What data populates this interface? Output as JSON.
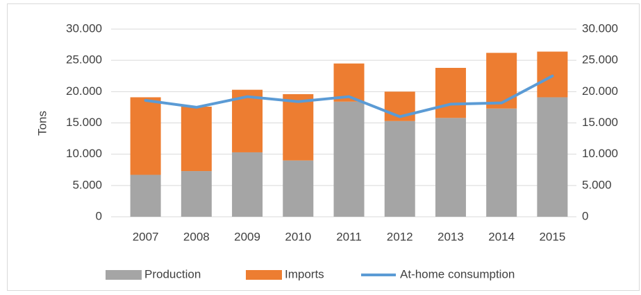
{
  "chart_data": {
    "type": "bar_line",
    "y_label": "Tons",
    "categories": [
      "2007",
      "2008",
      "2009",
      "2010",
      "2011",
      "2012",
      "2013",
      "2014",
      "2015"
    ],
    "series": [
      {
        "name": "Production",
        "color": "#a5a5a5",
        "type": "bar",
        "values": [
          6700,
          7300,
          10300,
          9000,
          18400,
          15300,
          15800,
          17300,
          19100
        ]
      },
      {
        "name": "Imports",
        "color": "#ed7d31",
        "type": "bar",
        "values": [
          12400,
          10300,
          10000,
          10600,
          6100,
          4700,
          8000,
          8900,
          7300
        ]
      },
      {
        "name": "At-home consumption",
        "color": "#5b9bd5",
        "type": "line",
        "axis": "y2",
        "values": [
          18600,
          17500,
          19200,
          18400,
          19200,
          16000,
          18000,
          18200,
          22500
        ]
      }
    ],
    "ylim": [
      0,
      30000
    ],
    "yticks": [
      0,
      {
        "value": 5000,
        "label": "5.000"
      },
      {
        "value": 10000,
        "label": "10.000"
      },
      {
        "value": 15000,
        "label": "15.000"
      },
      {
        "value": 20000,
        "label": "20.000"
      },
      {
        "value": 25000,
        "label": "25.000"
      },
      {
        "value": 30000,
        "label": "30.000"
      }
    ],
    "y2lim": [
      0,
      30000
    ],
    "y2ticks": [
      0,
      {
        "value": 5000,
        "label": "5.000"
      },
      {
        "value": 10000,
        "label": "10.000"
      },
      {
        "value": 15000,
        "label": "15.000"
      },
      {
        "value": 20000,
        "label": "20.000"
      },
      {
        "value": 25000,
        "label": "25.000"
      },
      {
        "value": 30000,
        "label": "30.000"
      }
    ],
    "grid": true,
    "legend": "bottom"
  }
}
